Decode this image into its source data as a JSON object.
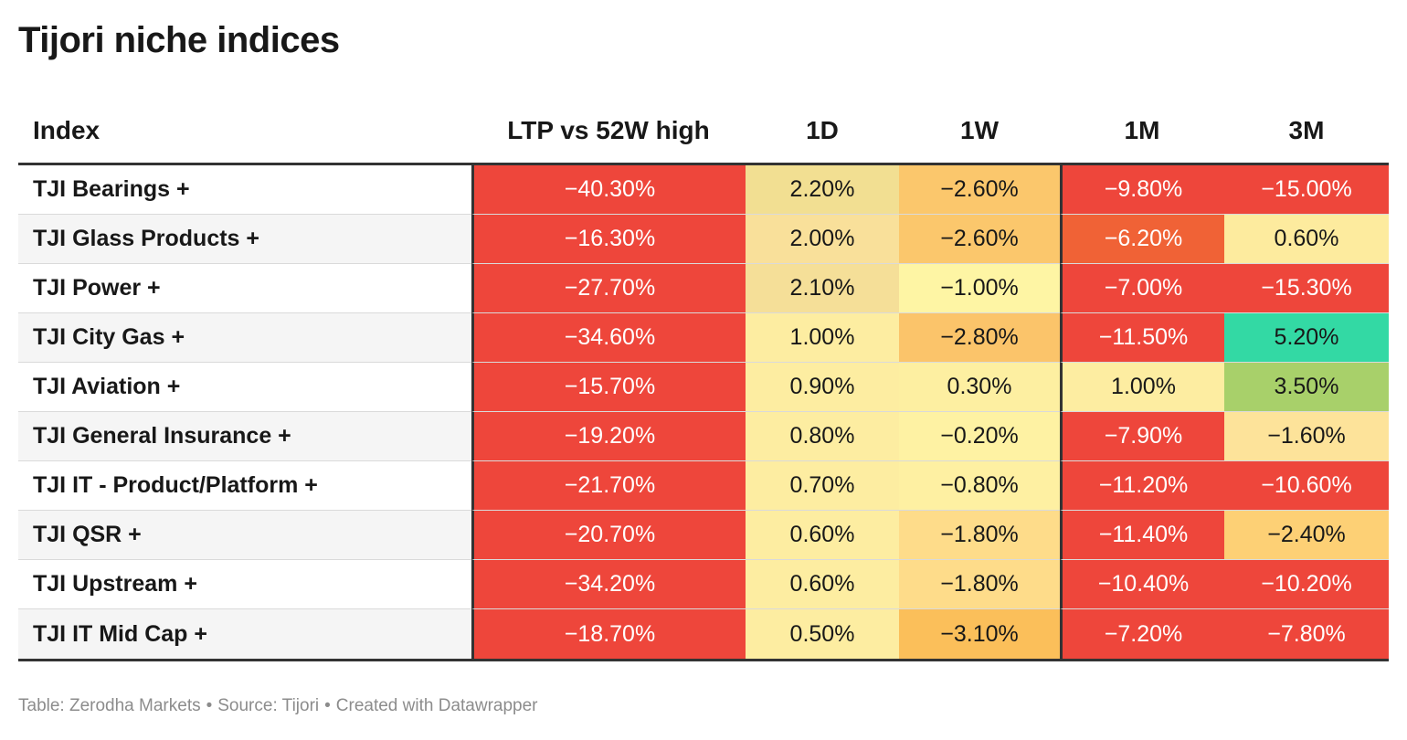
{
  "title": "Tijori niche indices",
  "columns": [
    "Index",
    "LTP vs 52W high",
    "1D",
    "1W",
    "1M",
    "3M"
  ],
  "rows": [
    {
      "name": "TJI Bearings +",
      "values": [
        "−40.30%",
        "2.20%",
        "−2.60%",
        "−9.80%",
        "−15.00%"
      ]
    },
    {
      "name": "TJI Glass Products +",
      "values": [
        "−16.30%",
        "2.00%",
        "−2.60%",
        "−6.20%",
        "0.60%"
      ]
    },
    {
      "name": "TJI Power +",
      "values": [
        "−27.70%",
        "2.10%",
        "−1.00%",
        "−7.00%",
        "−15.30%"
      ]
    },
    {
      "name": "TJI City Gas +",
      "values": [
        "−34.60%",
        "1.00%",
        "−2.80%",
        "−11.50%",
        "5.20%"
      ]
    },
    {
      "name": "TJI Aviation +",
      "values": [
        "−15.70%",
        "0.90%",
        "0.30%",
        "1.00%",
        "3.50%"
      ]
    },
    {
      "name": "TJI General Insurance +",
      "values": [
        "−19.20%",
        "0.80%",
        "−0.20%",
        "−7.90%",
        "−1.60%"
      ]
    },
    {
      "name": "TJI IT - Product/Platform +",
      "values": [
        "−21.70%",
        "0.70%",
        "−0.80%",
        "−11.20%",
        "−10.60%"
      ]
    },
    {
      "name": "TJI QSR +",
      "values": [
        "−20.70%",
        "0.60%",
        "−1.80%",
        "−11.40%",
        "−2.40%"
      ]
    },
    {
      "name": "TJI Upstream +",
      "values": [
        "−34.20%",
        "0.60%",
        "−1.80%",
        "−10.40%",
        "−10.20%"
      ]
    },
    {
      "name": "TJI IT Mid Cap +",
      "values": [
        "−18.70%",
        "0.50%",
        "−3.10%",
        "−7.20%",
        "−7.80%"
      ]
    }
  ],
  "cell_colors": [
    [
      "#ee463b",
      "#f2df92",
      "#fbc76c",
      "#ee463b",
      "#ee463b"
    ],
    [
      "#ee463b",
      "#f9e09a",
      "#fbc76c",
      "#f06236",
      "#fdeb9e"
    ],
    [
      "#ee463b",
      "#f5df98",
      "#fef5a4",
      "#ee463b",
      "#ee463b"
    ],
    [
      "#ee463b",
      "#fdeda1",
      "#fbc46a",
      "#ee463b",
      "#33d9a4"
    ],
    [
      "#ee463b",
      "#fdeda1",
      "#fdefa1",
      "#fdeda1",
      "#a8d06a"
    ],
    [
      "#ee463b",
      "#fdeda1",
      "#fef2a3",
      "#ee463b",
      "#fde39a"
    ],
    [
      "#ee463b",
      "#fdeda1",
      "#fef0a2",
      "#ee463b",
      "#ee463b"
    ],
    [
      "#ee463b",
      "#fdeda1",
      "#fedc8a",
      "#ee463b",
      "#fdd075"
    ],
    [
      "#ee463b",
      "#fdeda1",
      "#fedc8a",
      "#ee463b",
      "#ee463b"
    ],
    [
      "#ee463b",
      "#fdeda1",
      "#fbbf5a",
      "#ee463b",
      "#ee463b"
    ]
  ],
  "footer": {
    "table": "Table: Zerodha Markets",
    "source": "Source: Tijori",
    "created": "Created with Datawrapper",
    "separator": "•"
  }
}
